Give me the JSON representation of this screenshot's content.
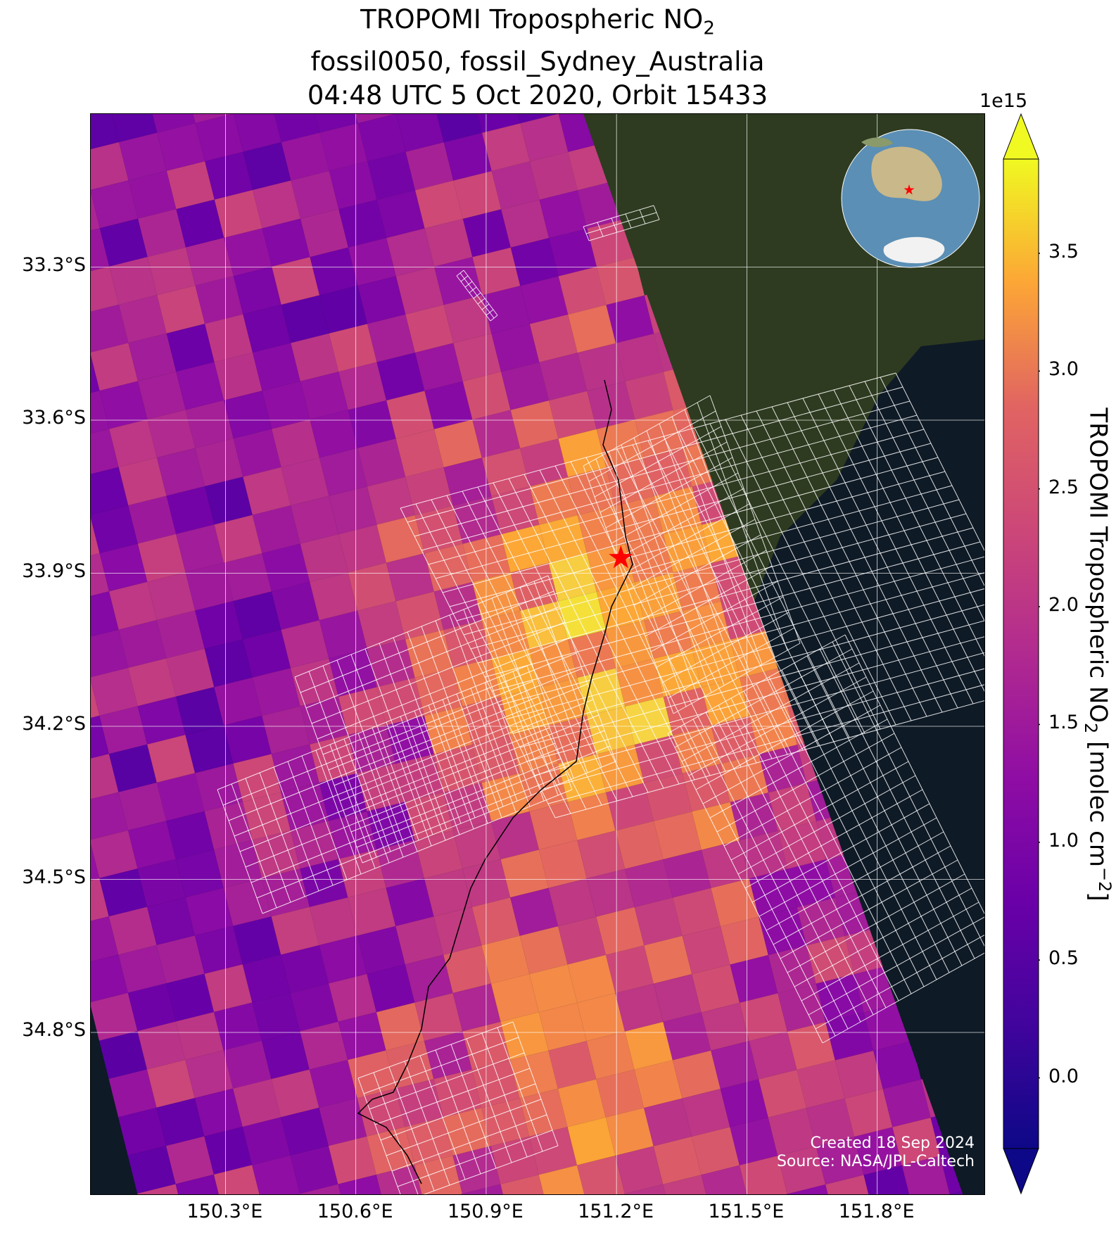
{
  "title": {
    "line1_prefix": "TROPOMI Tropospheric NO",
    "line1_subscript": "2",
    "line2": "fossil0050, fossil_Sydney_Australia",
    "line3": "04:48 UTC 5 Oct 2020, Orbit 15433"
  },
  "map": {
    "lon_range": [
      149.99,
      152.05
    ],
    "lat_range": [
      -35.12,
      -33.0
    ],
    "lat_ticks": [
      {
        "value": -33.3,
        "label": "33.3°S"
      },
      {
        "value": -33.6,
        "label": "33.6°S"
      },
      {
        "value": -33.9,
        "label": "33.9°S"
      },
      {
        "value": -34.2,
        "label": "34.2°S"
      },
      {
        "value": -34.5,
        "label": "34.5°S"
      },
      {
        "value": -34.8,
        "label": "34.8°S"
      }
    ],
    "lon_ticks": [
      {
        "value": 150.3,
        "label": "150.3°E"
      },
      {
        "value": 150.6,
        "label": "150.6°E"
      },
      {
        "value": 150.9,
        "label": "150.9°E"
      },
      {
        "value": 151.2,
        "label": "151.2°E"
      },
      {
        "value": 151.5,
        "label": "151.5°E"
      },
      {
        "value": 151.8,
        "label": "151.8°E"
      }
    ],
    "gridlines": true,
    "basemap": "satellite imagery",
    "site_marker": {
      "name": "star",
      "lon": 151.21,
      "lat": -33.87,
      "color": "#ff0000"
    },
    "inset_globe": {
      "centered_on": "Australia",
      "marker": "star",
      "marker_color": "#ff0000"
    },
    "overlay": "white target-mode footprint grids"
  },
  "credits": {
    "created": "Created 18 Sep 2024",
    "source": "Source: NASA/JPL-Caltech"
  },
  "colorbar": {
    "colormap": "plasma",
    "min": -0.3,
    "max": 3.9,
    "extend": "both",
    "exponent_label": "1e15",
    "ticks": [
      {
        "value": 0.0,
        "label": "0.0"
      },
      {
        "value": 0.5,
        "label": "0.5"
      },
      {
        "value": 1.0,
        "label": "1.0"
      },
      {
        "value": 1.5,
        "label": "1.5"
      },
      {
        "value": 2.0,
        "label": "2.0"
      },
      {
        "value": 2.5,
        "label": "2.5"
      },
      {
        "value": 3.0,
        "label": "3.0"
      },
      {
        "value": 3.5,
        "label": "3.5"
      }
    ],
    "label_prefix": "TROPOMI Tropospheric NO",
    "label_subscript": "2",
    "label_units_prefix": " [molec cm",
    "label_superscript": "−2",
    "label_suffix": "]"
  },
  "colors": {
    "ocean": "#0e1a26",
    "land": "#2e3b20",
    "grid": "#ffffff",
    "coast": "#000000",
    "footprint": "#ffffff"
  }
}
